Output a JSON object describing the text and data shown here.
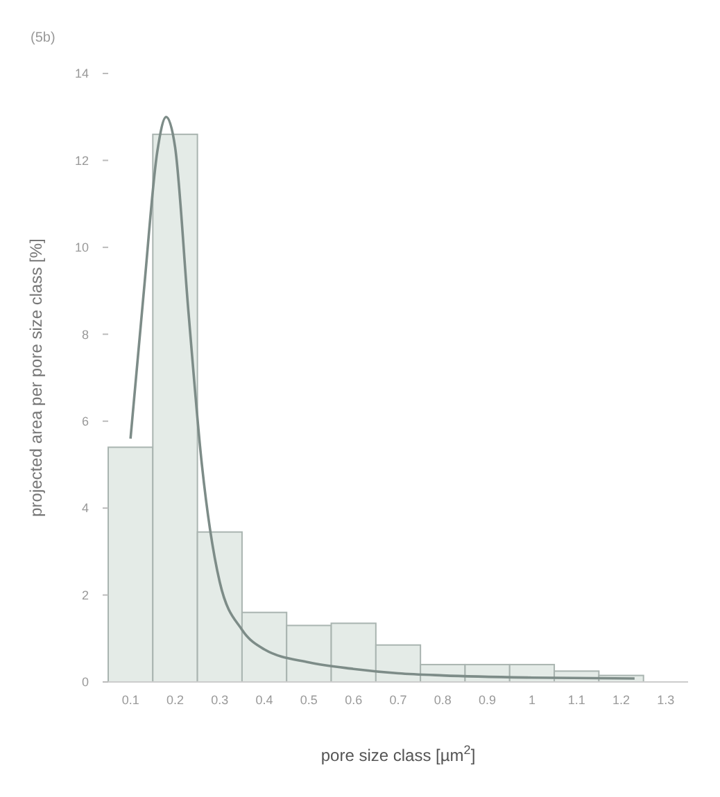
{
  "chart_data": {
    "type": "bar",
    "title": "(5b)",
    "xlabel": "pore size class [µm$^{2}$]",
    "ylabel": "projected area per pore size class [%]",
    "x": [
      0.1,
      0.2,
      0.3,
      0.4,
      0.5,
      0.6,
      0.7,
      0.8,
      0.9,
      1.0,
      1.1,
      1.2
    ],
    "series": [
      {
        "color": "#e4ebe7",
        "values": [
          5.4,
          12.6,
          3.45,
          1.6,
          1.3,
          1.35,
          0.85,
          0.4,
          0.4,
          0.4,
          0.25,
          0.15
        ]
      },
      {
        "type": "line",
        "color": "#7d8c88",
        "x": [
          0.1,
          0.13,
          0.16,
          0.18,
          0.2,
          0.23,
          0.26,
          0.3,
          0.35,
          0.4,
          0.5,
          0.6,
          0.7,
          0.8,
          1.0,
          1.23
        ],
        "values": [
          5.6,
          9,
          12.2,
          13,
          12.3,
          8.5,
          5,
          2.3,
          1.2,
          0.75,
          0.45,
          0.3,
          0.2,
          0.15,
          0.1,
          0.08
        ]
      }
    ],
    "xlim": [
      0.05,
      1.35
    ],
    "xticks": [
      0.1,
      0.2,
      0.3,
      0.4,
      0.5,
      0.6,
      0.7,
      0.8,
      0.9,
      1.0,
      1.1,
      1.2,
      1.3
    ],
    "ylim": [
      0,
      14
    ],
    "yticks": [
      0,
      2,
      4,
      6,
      8,
      10,
      12,
      14
    ],
    "grid": false
  }
}
